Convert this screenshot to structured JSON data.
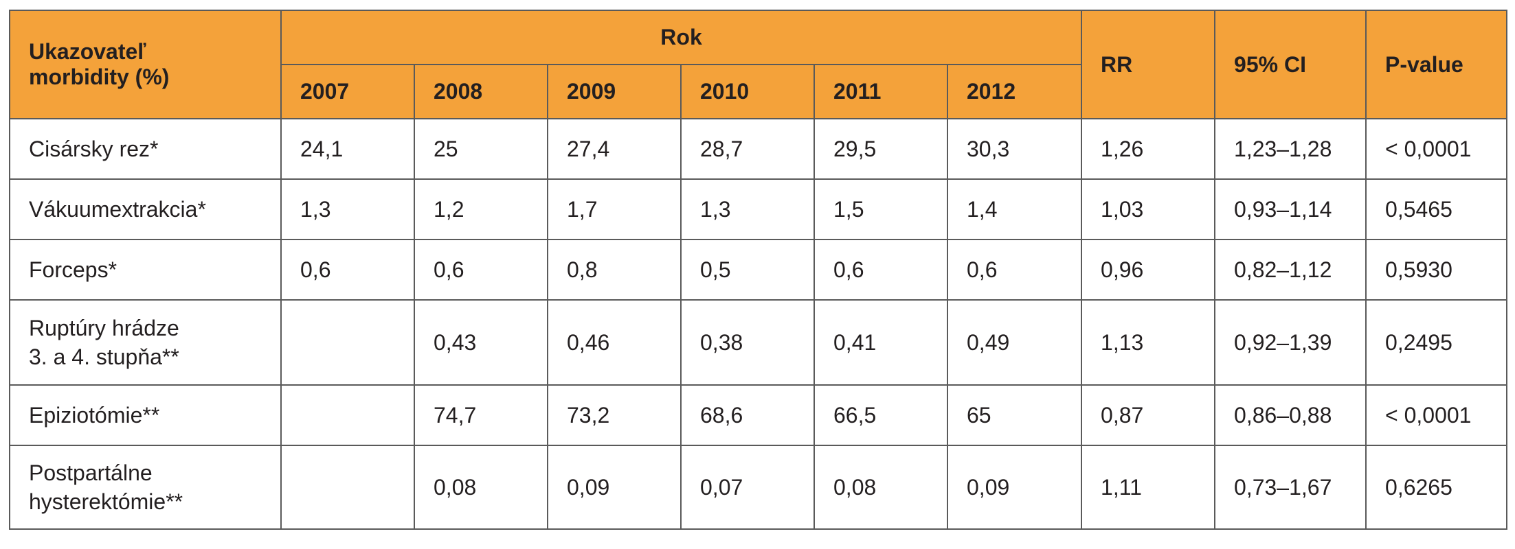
{
  "table": {
    "header": {
      "indicator": [
        "Ukazovateľ",
        "morbidity (%)"
      ],
      "year_group": "Rok",
      "years": [
        "2007",
        "2008",
        "2009",
        "2010",
        "2011",
        "2012"
      ],
      "rr": "RR",
      "ci": "95% CI",
      "pvalue": "P-value"
    },
    "rows": [
      {
        "label": [
          "Cisársky rez*"
        ],
        "values": [
          "24,1",
          "25",
          "27,4",
          "28,7",
          "29,5",
          "30,3"
        ],
        "rr": "1,26",
        "ci": "1,23–1,28",
        "p": "< 0,0001"
      },
      {
        "label": [
          "Vákuumextrakcia*"
        ],
        "values": [
          "1,3",
          "1,2",
          "1,7",
          "1,3",
          "1,5",
          "1,4"
        ],
        "rr": "1,03",
        "ci": "0,93–1,14",
        "p": "0,5465"
      },
      {
        "label": [
          "Forceps*"
        ],
        "values": [
          "0,6",
          "0,6",
          "0,8",
          "0,5",
          "0,6",
          "0,6"
        ],
        "rr": "0,96",
        "ci": "0,82–1,12",
        "p": "0,5930"
      },
      {
        "label": [
          "Ruptúry hrádze",
          "3. a 4. stupňa**"
        ],
        "values": [
          "",
          "0,43",
          "0,46",
          "0,38",
          "0,41",
          "0,49"
        ],
        "rr": "1,13",
        "ci": "0,92–1,39",
        "p": "0,2495"
      },
      {
        "label": [
          "Epiziotómie**"
        ],
        "values": [
          "",
          "74,7",
          "73,2",
          "68,6",
          "66,5",
          "65"
        ],
        "rr": "0,87",
        "ci": "0,86–0,88",
        "p": "< 0,0001"
      },
      {
        "label": [
          "Postpartálne",
          "hysterektómie**"
        ],
        "values": [
          "",
          "0,08",
          "0,09",
          "0,07",
          "0,08",
          "0,09"
        ],
        "rr": "1,11",
        "ci": "0,73–1,67",
        "p": "0,6265"
      }
    ]
  },
  "colors": {
    "header_bg": "#f4a23a",
    "border": "#5a5a5a",
    "text": "#231f20"
  }
}
